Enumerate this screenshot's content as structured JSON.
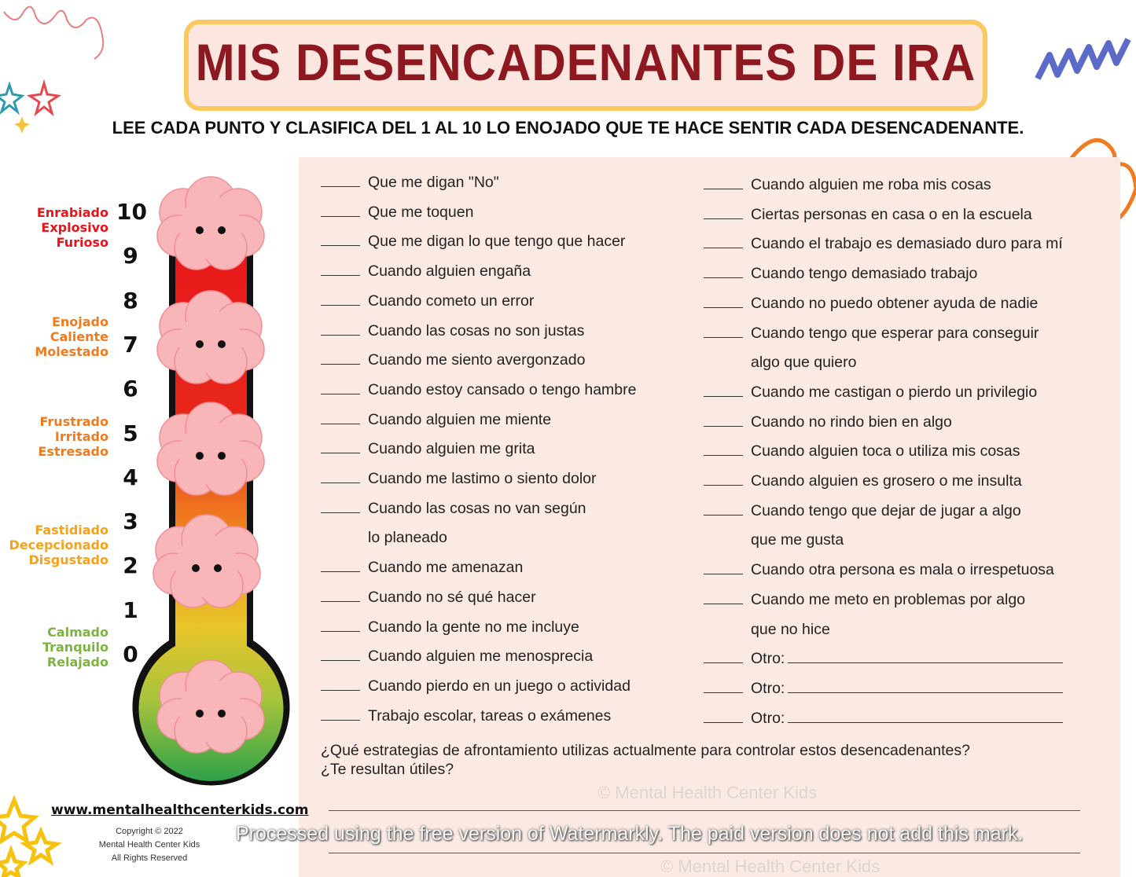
{
  "title": "MIS DESENCADENANTES DE IRA",
  "subtitle": "LEE CADA PUNTO Y CLASIFICA DEL 1 AL 10 LO ENOJADO QUE TE HACE SENTIR CADA DESENCADENANTE.",
  "scale": {
    "numbers": [
      "10",
      "9",
      "8",
      "7",
      "6",
      "5",
      "4",
      "3",
      "2",
      "1",
      "0"
    ],
    "groups": [
      {
        "lines": [
          "Enrabiado",
          "Explosivo",
          "Furioso"
        ],
        "color": "#e8141b"
      },
      {
        "lines": [
          "Enojado",
          "Caliente",
          "Molestado"
        ],
        "color": "#f07a1e"
      },
      {
        "lines": [
          "Frustrado",
          "Irritado",
          "Estresado"
        ],
        "color": "#f07a1e"
      },
      {
        "lines": [
          "Fastidiado",
          "Decepcionado",
          "Disgustado"
        ],
        "color": "#f7a21b"
      },
      {
        "lines": [
          "Calmado",
          "Tranquilo",
          "Relajado"
        ],
        "color": "#7cb342"
      }
    ]
  },
  "left_items": [
    {
      "text": "Que me digan \"No\""
    },
    {
      "text": "Que me toquen"
    },
    {
      "text": "Que me digan lo que tengo que hacer"
    },
    {
      "text": "Cuando alguien engaña"
    },
    {
      "text": "Cuando cometo un error"
    },
    {
      "text": "Cuando las cosas no son justas"
    },
    {
      "text": "Cuando me siento avergonzado"
    },
    {
      "text": "Cuando estoy cansado o tengo hambre"
    },
    {
      "text": "Cuando alguien me miente"
    },
    {
      "text": "Cuando alguien me grita"
    },
    {
      "text": "Cuando me lastimo o siento dolor"
    },
    {
      "text": "Cuando las cosas no van según",
      "cont": "lo planeado"
    },
    {
      "text": "Cuando me amenazan"
    },
    {
      "text": "Cuando no sé qué hacer"
    },
    {
      "text": "Cuando la gente no me incluye"
    },
    {
      "text": "Cuando alguien me menosprecia"
    },
    {
      "text": "Cuando pierdo en un juego o actividad"
    },
    {
      "text": "Trabajo escolar, tareas o exámenes"
    }
  ],
  "right_items": [
    {
      "text": "Cuando alguien me roba mis cosas"
    },
    {
      "text": "Ciertas personas en casa o en la escuela"
    },
    {
      "text": "Cuando el trabajo es demasiado duro para mí"
    },
    {
      "text": "Cuando tengo demasiado trabajo"
    },
    {
      "text": "Cuando no puedo obtener ayuda de nadie"
    },
    {
      "text": "Cuando tengo que esperar para conseguir",
      "cont": "algo que quiero"
    },
    {
      "text": "Cuando me castigan o pierdo un privilegio"
    },
    {
      "text": "Cuando no rindo bien en algo"
    },
    {
      "text": "Cuando alguien toca o utiliza mis cosas"
    },
    {
      "text": "Cuando alguien es grosero o me insulta"
    },
    {
      "text": "Cuando tengo que dejar de jugar a algo",
      "cont": "que me gusta"
    },
    {
      "text": "Cuando otra persona es mala o irrespetuosa"
    },
    {
      "text": "Cuando me meto en problemas por algo",
      "cont": "que no hice"
    },
    {
      "text": "Otro:",
      "other": true
    },
    {
      "text": "Otro:",
      "other": true
    },
    {
      "text": "Otro:",
      "other": true
    }
  ],
  "question": {
    "line1": "¿Qué estrategias de afrontamiento utilizas actualmente para controlar estos desencadenantes?",
    "line2": "¿Te resultan útiles?"
  },
  "footer": {
    "website": "www.mentalhealthcenterkids.com",
    "copyright": "Copyright © 2022",
    "company": "Mental Health Center Kids",
    "rights": "All Rights Reserved"
  },
  "watermark": "© Mental Health Center Kids",
  "watermarkly": "Processed using the free version of Watermarkly. The paid version does not add this mark.",
  "colors": {
    "title": "#8e1820",
    "title_border": "#f9c85e",
    "panel": "#fbeae4",
    "brain": "#f9b6b9"
  }
}
